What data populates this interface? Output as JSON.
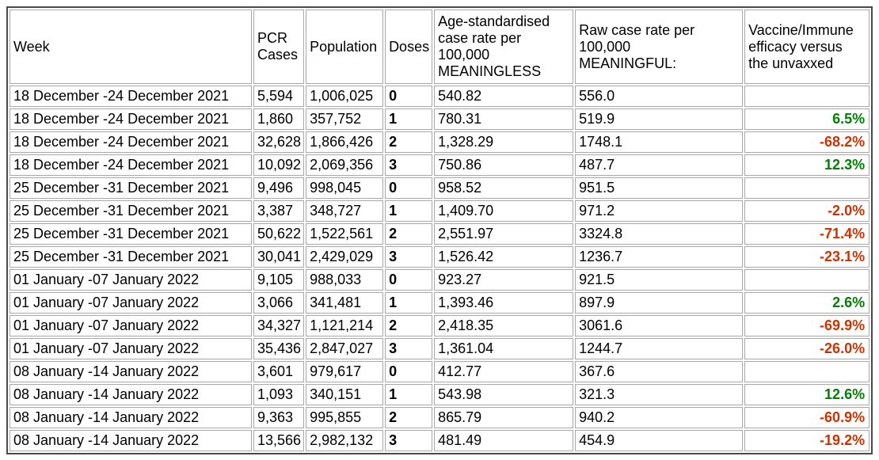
{
  "colors": {
    "positive": "#008000",
    "negative": "#cc3300",
    "cell_border": "#a8a8a8",
    "outer_border": "#4a4a4a",
    "text": "#000000",
    "background": "#ffffff"
  },
  "chart_data": {
    "type": "table",
    "columns": [
      "Week",
      "PCR\nCases",
      "Population",
      "Doses",
      "Age-standardised\ncase rate per\n100,000\nMEANINGLESS",
      "Raw case rate per\n100,000\nMEANINGFUL:",
      "Vaccine/Immune\nefficacy versus\nthe unvaxxed"
    ],
    "rows": [
      {
        "week": "18 December -24 December 2021",
        "pcr_cases": "5,594",
        "population": "1,006,025",
        "doses": "0",
        "age_std_rate": "540.82",
        "raw_rate": "556.0",
        "efficacy": "",
        "efficacy_trend": ""
      },
      {
        "week": "18 December -24 December 2021",
        "pcr_cases": "1,860",
        "population": "357,752",
        "doses": "1",
        "age_std_rate": "780.31",
        "raw_rate": "519.9",
        "efficacy": "6.5%",
        "efficacy_trend": "positive"
      },
      {
        "week": "18 December -24 December 2021",
        "pcr_cases": "32,628",
        "population": "1,866,426",
        "doses": "2",
        "age_std_rate": "1,328.29",
        "raw_rate": "1748.1",
        "efficacy": "-68.2%",
        "efficacy_trend": "negative"
      },
      {
        "week": "18 December -24 December 2021",
        "pcr_cases": "10,092",
        "population": "2,069,356",
        "doses": "3",
        "age_std_rate": "750.86",
        "raw_rate": "487.7",
        "efficacy": "12.3%",
        "efficacy_trend": "positive"
      },
      {
        "week": "25 December -31 December 2021",
        "pcr_cases": "9,496",
        "population": "998,045",
        "doses": "0",
        "age_std_rate": "958.52",
        "raw_rate": "951.5",
        "efficacy": "",
        "efficacy_trend": ""
      },
      {
        "week": "25 December -31 December 2021",
        "pcr_cases": "3,387",
        "population": "348,727",
        "doses": "1",
        "age_std_rate": "1,409.70",
        "raw_rate": "971.2",
        "efficacy": "-2.0%",
        "efficacy_trend": "negative"
      },
      {
        "week": "25 December -31 December 2021",
        "pcr_cases": "50,622",
        "population": "1,522,561",
        "doses": "2",
        "age_std_rate": "2,551.97",
        "raw_rate": "3324.8",
        "efficacy": "-71.4%",
        "efficacy_trend": "negative"
      },
      {
        "week": "25 December -31 December 2021",
        "pcr_cases": "30,041",
        "population": "2,429,029",
        "doses": "3",
        "age_std_rate": "1,526.42",
        "raw_rate": "1236.7",
        "efficacy": "-23.1%",
        "efficacy_trend": "negative"
      },
      {
        "week": "01 January -07 January 2022",
        "pcr_cases": "9,105",
        "population": "988,033",
        "doses": "0",
        "age_std_rate": "923.27",
        "raw_rate": "921.5",
        "efficacy": "",
        "efficacy_trend": ""
      },
      {
        "week": "01 January -07 January 2022",
        "pcr_cases": "3,066",
        "population": "341,481",
        "doses": "1",
        "age_std_rate": "1,393.46",
        "raw_rate": "897.9",
        "efficacy": "2.6%",
        "efficacy_trend": "positive"
      },
      {
        "week": "01 January -07 January 2022",
        "pcr_cases": "34,327",
        "population": "1,121,214",
        "doses": "2",
        "age_std_rate": "2,418.35",
        "raw_rate": "3061.6",
        "efficacy": "-69.9%",
        "efficacy_trend": "negative"
      },
      {
        "week": "01 January -07 January 2022",
        "pcr_cases": "35,436",
        "population": "2,847,027",
        "doses": "3",
        "age_std_rate": "1,361.04",
        "raw_rate": "1244.7",
        "efficacy": "-26.0%",
        "efficacy_trend": "negative"
      },
      {
        "week": "08 January -14 January 2022",
        "pcr_cases": "3,601",
        "population": "979,617",
        "doses": "0",
        "age_std_rate": "412.77",
        "raw_rate": "367.6",
        "efficacy": "",
        "efficacy_trend": ""
      },
      {
        "week": "08 January -14 January 2022",
        "pcr_cases": "1,093",
        "population": "340,151",
        "doses": "1",
        "age_std_rate": "543.98",
        "raw_rate": "321.3",
        "efficacy": "12.6%",
        "efficacy_trend": "positive"
      },
      {
        "week": "08 January -14 January 2022",
        "pcr_cases": "9,363",
        "population": "995,855",
        "doses": "2",
        "age_std_rate": "865.79",
        "raw_rate": "940.2",
        "efficacy": "-60.9%",
        "efficacy_trend": "negative"
      },
      {
        "week": "08 January -14 January 2022",
        "pcr_cases": "13,566",
        "population": "2,982,132",
        "doses": "3",
        "age_std_rate": "481.49",
        "raw_rate": "454.9",
        "efficacy": "-19.2%",
        "efficacy_trend": "negative"
      }
    ]
  }
}
